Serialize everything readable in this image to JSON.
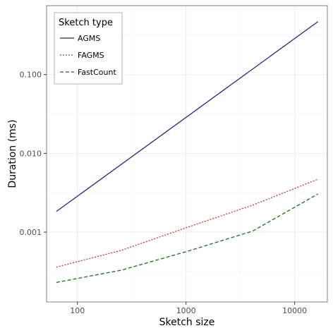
{
  "chart_data": {
    "type": "line",
    "xlabel": "Sketch size",
    "ylabel": "Duration (ms)",
    "x_scale": "log",
    "y_scale": "log",
    "xlim": [
      52,
      20000
    ],
    "ylim": [
      0.00013,
      0.75
    ],
    "x_ticks": [
      {
        "value": 100,
        "label": "100"
      },
      {
        "value": 1000,
        "label": "1000"
      },
      {
        "value": 10000,
        "label": "10000"
      }
    ],
    "y_ticks": [
      {
        "value": 0.001,
        "label": "0.001"
      },
      {
        "value": 0.01,
        "label": "0.010"
      },
      {
        "value": 0.1,
        "label": "0.100"
      }
    ],
    "grid": true,
    "legend": {
      "title": "Sketch type",
      "position": "top-left"
    },
    "series": [
      {
        "name": "AGMS",
        "color": "#1f2a7a",
        "dash": "solid",
        "points": [
          [
            64,
            0.00183
          ],
          [
            16384,
            0.47
          ]
        ]
      },
      {
        "name": "FAGMS",
        "color": "#c0392b",
        "dash": "dotted",
        "points": [
          [
            64,
            0.00036
          ],
          [
            256,
            0.00059
          ],
          [
            1024,
            0.00115
          ],
          [
            4096,
            0.0022
          ],
          [
            16384,
            0.0047
          ]
        ]
      },
      {
        "name": "FastCount",
        "color": "#1e6b1e",
        "dash": "dashed",
        "points": [
          [
            64,
            0.00023
          ],
          [
            256,
            0.00033
          ],
          [
            1024,
            0.00057
          ],
          [
            4096,
            0.00103
          ],
          [
            16384,
            0.00305
          ]
        ]
      }
    ]
  }
}
